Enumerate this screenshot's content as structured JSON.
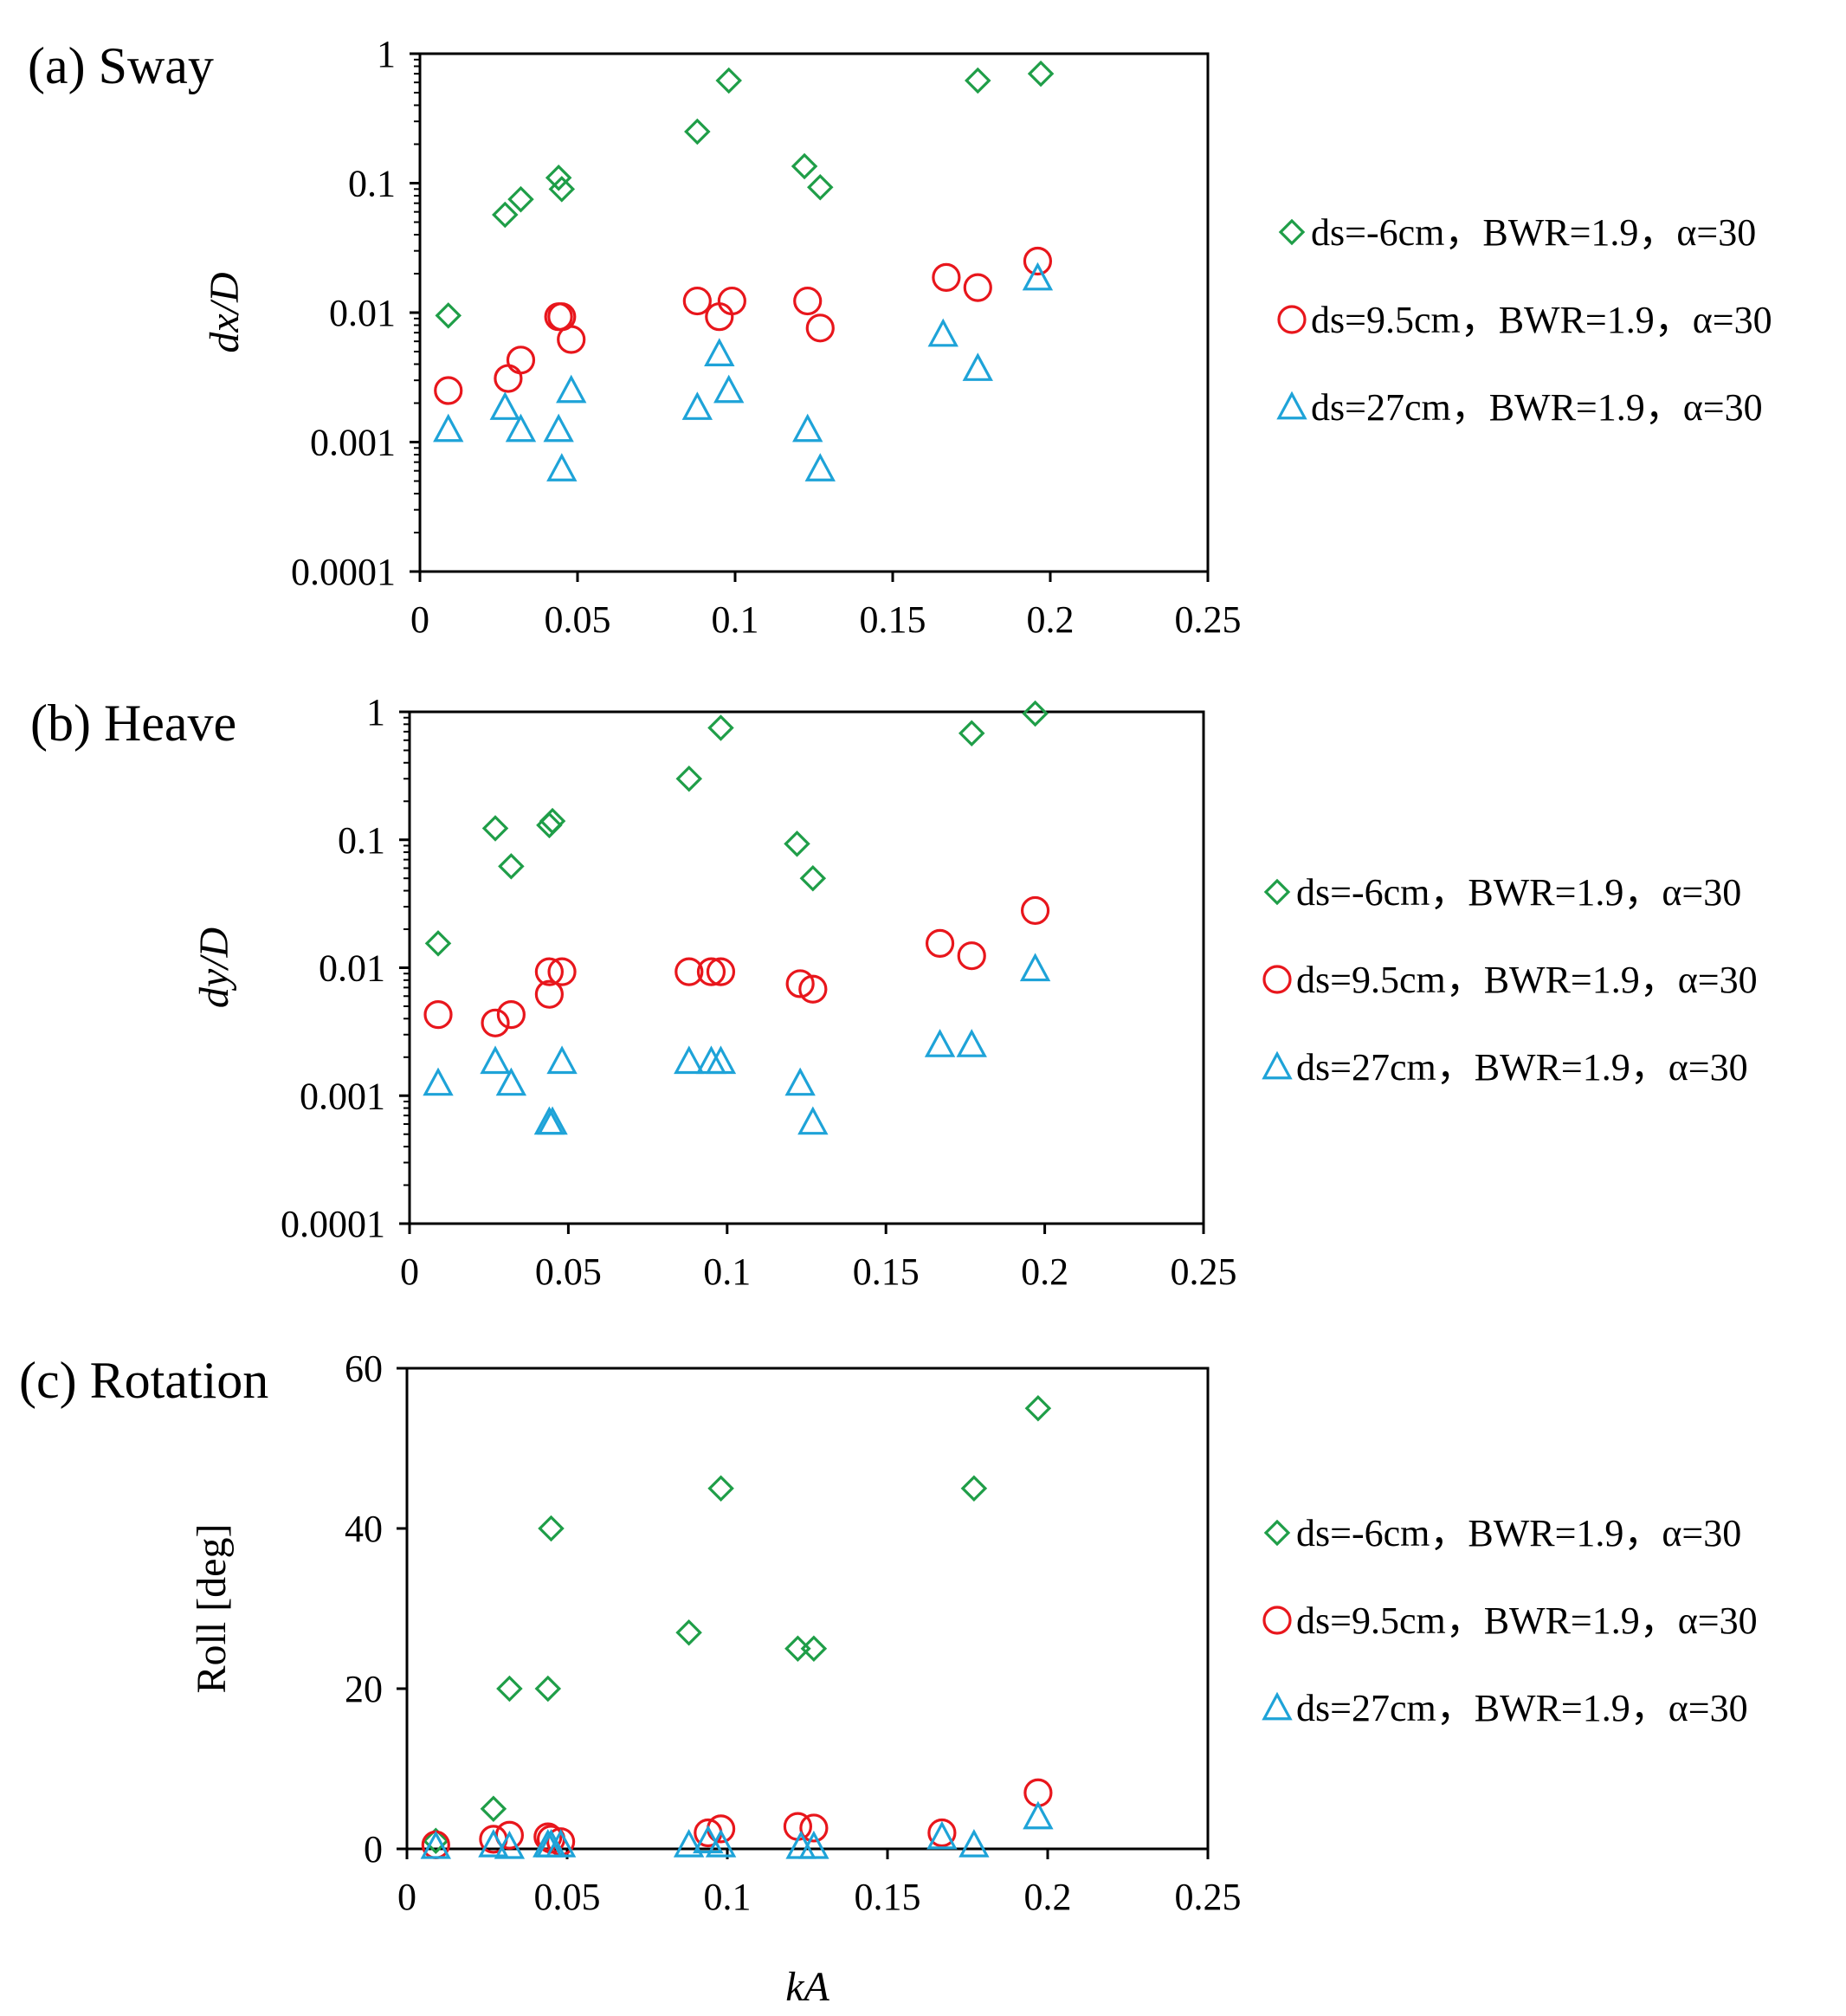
{
  "colors": {
    "series_a": "#1f9e48",
    "series_b": "#e8161c",
    "series_c": "#1ea3d8",
    "axes": "#000000"
  },
  "legend": [
    {
      "label": "ds=-6cm，BWR=1.9，α=30",
      "marker": "diamond",
      "color": "#1f9e48"
    },
    {
      "label": "ds=9.5cm，BWR=1.9，α=30",
      "marker": "circle",
      "color": "#e8161c"
    },
    {
      "label": "ds=27cm，BWR=1.9，α=30",
      "marker": "triangle",
      "color": "#1ea3d8"
    }
  ],
  "chart_data": [
    {
      "type": "scatter",
      "panel_label": "(a) Sway",
      "xlabel": "",
      "ylabel": "dx/D",
      "yscale": "log",
      "xlim": [
        0,
        0.25
      ],
      "ylim": [
        0.0001,
        1
      ],
      "x_ticks": [
        "0",
        "0.05",
        "0.1",
        "0.15",
        "0.2",
        "0.25"
      ],
      "y_ticks": [
        "0.0001",
        "0.001",
        "0.01",
        "0.1",
        "1"
      ],
      "grid": false,
      "series": [
        {
          "name": "ds=-6cm，BWR=1.9，α=30",
          "marker": "diamond",
          "points": [
            [
              0.009,
              0.0095
            ],
            [
              0.027,
              0.057
            ],
            [
              0.032,
              0.075
            ],
            [
              0.044,
              0.11
            ],
            [
              0.045,
              0.09
            ],
            [
              0.088,
              0.25
            ],
            [
              0.098,
              0.62
            ],
            [
              0.122,
              0.135
            ],
            [
              0.127,
              0.093
            ],
            [
              0.177,
              0.62
            ],
            [
              0.197,
              0.7
            ]
          ]
        },
        {
          "name": "ds=9.5cm，BWR=1.9，α=30",
          "marker": "circle",
          "points": [
            [
              0.009,
              0.0025
            ],
            [
              0.028,
              0.0031
            ],
            [
              0.032,
              0.0043
            ],
            [
              0.044,
              0.0093
            ],
            [
              0.045,
              0.0093
            ],
            [
              0.048,
              0.0062
            ],
            [
              0.088,
              0.0123
            ],
            [
              0.095,
              0.0093
            ],
            [
              0.099,
              0.0123
            ],
            [
              0.123,
              0.0123
            ],
            [
              0.127,
              0.0076
            ],
            [
              0.167,
              0.0187
            ],
            [
              0.177,
              0.0156
            ],
            [
              0.196,
              0.025
            ]
          ]
        },
        {
          "name": "ds=27cm，BWR=1.9，α=30",
          "marker": "triangle",
          "points": [
            [
              0.009,
              0.00125
            ],
            [
              0.027,
              0.00185
            ],
            [
              0.032,
              0.00125
            ],
            [
              0.044,
              0.00125
            ],
            [
              0.045,
              0.00062
            ],
            [
              0.048,
              0.0025
            ],
            [
              0.088,
              0.00185
            ],
            [
              0.095,
              0.0048
            ],
            [
              0.098,
              0.0025
            ],
            [
              0.123,
              0.00125
            ],
            [
              0.127,
              0.00062
            ],
            [
              0.166,
              0.0068
            ],
            [
              0.177,
              0.0037
            ],
            [
              0.196,
              0.0185
            ]
          ]
        }
      ]
    },
    {
      "type": "scatter",
      "panel_label": "(b) Heave",
      "xlabel": "",
      "ylabel": "dy/D",
      "yscale": "log",
      "xlim": [
        0,
        0.25
      ],
      "ylim": [
        0.0001,
        1
      ],
      "x_ticks": [
        "0",
        "0.05",
        "0.1",
        "0.15",
        "0.2",
        "0.25"
      ],
      "y_ticks": [
        "0.0001",
        "0.001",
        "0.01",
        "0.1",
        "1"
      ],
      "grid": false,
      "series": [
        {
          "name": "ds=-6cm，BWR=1.9，α=30",
          "marker": "diamond",
          "points": [
            [
              0.009,
              0.0155
            ],
            [
              0.027,
              0.123
            ],
            [
              0.032,
              0.062
            ],
            [
              0.044,
              0.13
            ],
            [
              0.045,
              0.14
            ],
            [
              0.088,
              0.3
            ],
            [
              0.098,
              0.75
            ],
            [
              0.122,
              0.093
            ],
            [
              0.127,
              0.05
            ],
            [
              0.177,
              0.68
            ],
            [
              0.197,
              0.97
            ]
          ]
        },
        {
          "name": "ds=9.5cm，BWR=1.9，α=30",
          "marker": "circle",
          "points": [
            [
              0.009,
              0.0043
            ],
            [
              0.027,
              0.0037
            ],
            [
              0.032,
              0.0043
            ],
            [
              0.044,
              0.0093
            ],
            [
              0.044,
              0.0062
            ],
            [
              0.048,
              0.0093
            ],
            [
              0.088,
              0.0093
            ],
            [
              0.095,
              0.0093
            ],
            [
              0.098,
              0.0093
            ],
            [
              0.123,
              0.0075
            ],
            [
              0.127,
              0.0068
            ],
            [
              0.167,
              0.0155
            ],
            [
              0.177,
              0.0124
            ],
            [
              0.197,
              0.028
            ]
          ]
        },
        {
          "name": "ds=27cm，BWR=1.9，α=30",
          "marker": "triangle",
          "points": [
            [
              0.009,
              0.00125
            ],
            [
              0.027,
              0.00185
            ],
            [
              0.032,
              0.00125
            ],
            [
              0.044,
              0.00062
            ],
            [
              0.045,
              0.00062
            ],
            [
              0.048,
              0.00185
            ],
            [
              0.088,
              0.00185
            ],
            [
              0.095,
              0.00185
            ],
            [
              0.098,
              0.00185
            ],
            [
              0.123,
              0.00125
            ],
            [
              0.127,
              0.00062
            ],
            [
              0.167,
              0.0025
            ],
            [
              0.177,
              0.0025
            ],
            [
              0.197,
              0.0098
            ]
          ]
        }
      ]
    },
    {
      "type": "scatter",
      "panel_label": "(c) Rotation",
      "xlabel": "kA",
      "ylabel": "Roll [deg]",
      "yscale": "linear",
      "xlim": [
        0,
        0.25
      ],
      "ylim": [
        0,
        60
      ],
      "x_ticks": [
        "0",
        "0.05",
        "0.1",
        "0.15",
        "0.2",
        "0.25"
      ],
      "y_ticks": [
        "0",
        "20",
        "40",
        "60"
      ],
      "grid": false,
      "series": [
        {
          "name": "ds=-6cm，BWR=1.9，α=30",
          "marker": "diamond",
          "points": [
            [
              0.009,
              1
            ],
            [
              0.027,
              5
            ],
            [
              0.032,
              20
            ],
            [
              0.044,
              20
            ],
            [
              0.045,
              40
            ],
            [
              0.088,
              27
            ],
            [
              0.098,
              45
            ],
            [
              0.122,
              25
            ],
            [
              0.127,
              25
            ],
            [
              0.177,
              45
            ],
            [
              0.197,
              55
            ]
          ]
        },
        {
          "name": "ds=9.5cm，BWR=1.9，α=30",
          "marker": "circle",
          "points": [
            [
              0.009,
              0.5
            ],
            [
              0.027,
              1.2
            ],
            [
              0.032,
              1.7
            ],
            [
              0.044,
              1.5
            ],
            [
              0.045,
              1.2
            ],
            [
              0.048,
              0.9
            ],
            [
              0.094,
              2
            ],
            [
              0.098,
              2.5
            ],
            [
              0.122,
              2.8
            ],
            [
              0.127,
              2.6
            ],
            [
              0.167,
              2
            ],
            [
              0.197,
              7
            ]
          ]
        },
        {
          "name": "ds=27cm，BWR=1.9，α=30",
          "marker": "triangle",
          "points": [
            [
              0.009,
              0.3
            ],
            [
              0.027,
              0.5
            ],
            [
              0.032,
              0.3
            ],
            [
              0.044,
              0.5
            ],
            [
              0.045,
              0.5
            ],
            [
              0.048,
              0.5
            ],
            [
              0.088,
              0.5
            ],
            [
              0.094,
              1
            ],
            [
              0.098,
              0.5
            ],
            [
              0.123,
              0.3
            ],
            [
              0.127,
              0.3
            ],
            [
              0.167,
              1.5
            ],
            [
              0.177,
              0.5
            ],
            [
              0.197,
              4
            ]
          ]
        }
      ]
    }
  ]
}
